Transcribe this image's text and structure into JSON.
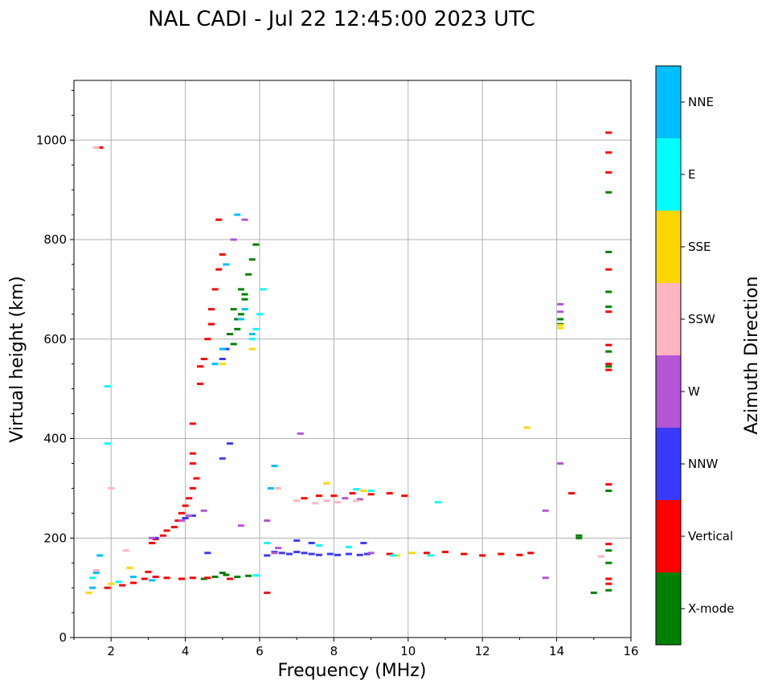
{
  "chart_data": {
    "type": "scatter",
    "title": "NAL CADI - Jul 22 12:45:00 2023 UTC",
    "xlabel": "Frequency (MHz)",
    "ylabel": "Virtual height (km)",
    "xlim": [
      1,
      16
    ],
    "ylim": [
      0,
      1120
    ],
    "xticks": [
      2,
      4,
      6,
      8,
      10,
      12,
      14,
      16
    ],
    "yticks": [
      0,
      200,
      400,
      600,
      800,
      1000
    ],
    "grid": true,
    "colorbar": {
      "label": "Azimuth Direction",
      "categories": [
        {
          "name": "X-mode",
          "color": "#008000"
        },
        {
          "name": "Vertical",
          "color": "#ff0000"
        },
        {
          "name": "NNW",
          "color": "#3a3aff"
        },
        {
          "name": "W",
          "color": "#b455d6"
        },
        {
          "name": "SSW",
          "color": "#ffb6c1"
        },
        {
          "name": "SSE",
          "color": "#ffd700"
        },
        {
          "name": "E",
          "color": "#00ffff"
        },
        {
          "name": "NNE",
          "color": "#00bfff"
        }
      ]
    },
    "series": [
      {
        "name": "X-mode",
        "points": [
          [
            4.5,
            118
          ],
          [
            4.8,
            122
          ],
          [
            5.1,
            126
          ],
          [
            5.4,
            122
          ],
          [
            5.7,
            124
          ],
          [
            5.0,
            130
          ],
          [
            5.3,
            590
          ],
          [
            5.4,
            620
          ],
          [
            5.5,
            650
          ],
          [
            5.6,
            690
          ],
          [
            5.7,
            730
          ],
          [
            5.8,
            760
          ],
          [
            5.5,
            700
          ],
          [
            5.3,
            660
          ],
          [
            5.2,
            610
          ],
          [
            5.9,
            790
          ],
          [
            5.6,
            680
          ],
          [
            5.4,
            640
          ],
          [
            14.1,
            640
          ],
          [
            14.1,
            630
          ],
          [
            14.6,
            205
          ],
          [
            14.6,
            200
          ],
          [
            15.0,
            90
          ],
          [
            15.4,
            95
          ],
          [
            15.4,
            150
          ],
          [
            15.4,
            175
          ],
          [
            15.4,
            295
          ],
          [
            15.4,
            545
          ],
          [
            15.4,
            575
          ],
          [
            15.4,
            665
          ],
          [
            15.4,
            695
          ],
          [
            15.4,
            775
          ],
          [
            15.4,
            895
          ]
        ]
      },
      {
        "name": "Vertical",
        "points": [
          [
            1.9,
            100
          ],
          [
            2.3,
            105
          ],
          [
            2.6,
            110
          ],
          [
            2.9,
            118
          ],
          [
            3.0,
            132
          ],
          [
            3.2,
            122
          ],
          [
            3.5,
            120
          ],
          [
            3.9,
            118
          ],
          [
            4.2,
            120
          ],
          [
            4.6,
            120
          ],
          [
            5.2,
            118
          ],
          [
            3.1,
            190
          ],
          [
            3.2,
            198
          ],
          [
            3.4,
            205
          ],
          [
            3.5,
            215
          ],
          [
            3.7,
            222
          ],
          [
            3.8,
            235
          ],
          [
            3.9,
            250
          ],
          [
            4.0,
            265
          ],
          [
            4.1,
            280
          ],
          [
            4.2,
            300
          ],
          [
            4.3,
            320
          ],
          [
            4.2,
            350
          ],
          [
            4.2,
            370
          ],
          [
            4.2,
            430
          ],
          [
            4.4,
            510
          ],
          [
            4.4,
            545
          ],
          [
            4.5,
            560
          ],
          [
            4.6,
            600
          ],
          [
            4.7,
            630
          ],
          [
            4.7,
            660
          ],
          [
            4.8,
            700
          ],
          [
            4.9,
            740
          ],
          [
            5.0,
            770
          ],
          [
            4.9,
            840
          ],
          [
            6.2,
            90
          ],
          [
            7.2,
            280
          ],
          [
            7.6,
            285
          ],
          [
            8.0,
            285
          ],
          [
            8.5,
            290
          ],
          [
            9.0,
            288
          ],
          [
            9.5,
            290
          ],
          [
            9.9,
            285
          ],
          [
            9.5,
            168
          ],
          [
            10.5,
            170
          ],
          [
            11.0,
            172
          ],
          [
            11.5,
            168
          ],
          [
            12.0,
            165
          ],
          [
            12.5,
            168
          ],
          [
            13.0,
            166
          ],
          [
            13.3,
            170
          ],
          [
            14.4,
            290
          ],
          [
            15.4,
            108
          ],
          [
            15.4,
            118
          ],
          [
            15.4,
            188
          ],
          [
            15.4,
            308
          ],
          [
            15.4,
            538
          ],
          [
            15.4,
            550
          ],
          [
            15.4,
            588
          ],
          [
            15.4,
            655
          ],
          [
            15.4,
            740
          ],
          [
            15.4,
            935
          ],
          [
            15.4,
            975
          ],
          [
            15.4,
            1015
          ],
          [
            1.7,
            985
          ]
        ]
      },
      {
        "name": "NNW",
        "points": [
          [
            3.2,
            200
          ],
          [
            4.0,
            240
          ],
          [
            4.2,
            245
          ],
          [
            4.6,
            170
          ],
          [
            5.0,
            360
          ],
          [
            5.2,
            390
          ],
          [
            6.2,
            165
          ],
          [
            6.4,
            172
          ],
          [
            6.6,
            170
          ],
          [
            6.8,
            168
          ],
          [
            7.0,
            172
          ],
          [
            7.2,
            170
          ],
          [
            7.4,
            168
          ],
          [
            7.6,
            166
          ],
          [
            7.9,
            168
          ],
          [
            8.1,
            166
          ],
          [
            8.4,
            168
          ],
          [
            8.7,
            166
          ],
          [
            8.9,
            168
          ],
          [
            7.0,
            195
          ],
          [
            7.4,
            190
          ],
          [
            8.8,
            190
          ],
          [
            5.1,
            580
          ],
          [
            5.0,
            560
          ]
        ]
      },
      {
        "name": "W",
        "points": [
          [
            3.1,
            200
          ],
          [
            3.9,
            235
          ],
          [
            4.1,
            245
          ],
          [
            4.5,
            255
          ],
          [
            5.5,
            225
          ],
          [
            6.2,
            235
          ],
          [
            6.4,
            170
          ],
          [
            6.5,
            180
          ],
          [
            8.3,
            280
          ],
          [
            8.7,
            278
          ],
          [
            9.0,
            170
          ],
          [
            7.1,
            410
          ],
          [
            13.7,
            120
          ],
          [
            13.7,
            255
          ],
          [
            14.1,
            350
          ],
          [
            14.1,
            670
          ],
          [
            14.1,
            655
          ],
          [
            5.3,
            800
          ],
          [
            5.6,
            840
          ]
        ]
      },
      {
        "name": "SSW",
        "points": [
          [
            1.6,
            135
          ],
          [
            2.0,
            300
          ],
          [
            6.5,
            300
          ],
          [
            7.0,
            275
          ],
          [
            7.5,
            270
          ],
          [
            7.8,
            275
          ],
          [
            8.1,
            272
          ],
          [
            8.6,
            275
          ],
          [
            2.4,
            175
          ],
          [
            15.2,
            163
          ],
          [
            1.6,
            985
          ]
        ]
      },
      {
        "name": "SSE",
        "points": [
          [
            1.4,
            90
          ],
          [
            1.5,
            100
          ],
          [
            2.0,
            108
          ],
          [
            2.5,
            140
          ],
          [
            7.8,
            310
          ],
          [
            8.8,
            295
          ],
          [
            9.7,
            165
          ],
          [
            10.1,
            170
          ],
          [
            13.2,
            422
          ],
          [
            14.1,
            622
          ],
          [
            14.1,
            628
          ],
          [
            5.8,
            580
          ],
          [
            5.0,
            550
          ]
        ]
      },
      {
        "name": "E",
        "points": [
          [
            1.5,
            120
          ],
          [
            1.9,
            505
          ],
          [
            1.9,
            390
          ],
          [
            1.7,
            165
          ],
          [
            2.2,
            112
          ],
          [
            5.9,
            125
          ],
          [
            6.1,
            700
          ],
          [
            6.0,
            650
          ],
          [
            5.9,
            620
          ],
          [
            5.8,
            600
          ],
          [
            6.2,
            190
          ],
          [
            7.6,
            185
          ],
          [
            8.4,
            182
          ],
          [
            9.6,
            165
          ],
          [
            10.8,
            272
          ],
          [
            10.6,
            165
          ],
          [
            8.6,
            298
          ],
          [
            9.0,
            295
          ]
        ]
      },
      {
        "name": "NNE",
        "points": [
          [
            1.5,
            100
          ],
          [
            1.6,
            130
          ],
          [
            1.7,
            165
          ],
          [
            2.6,
            122
          ],
          [
            3.1,
            115
          ],
          [
            6.4,
            345
          ],
          [
            5.1,
            750
          ],
          [
            5.4,
            850
          ],
          [
            5.8,
            610
          ],
          [
            5.6,
            660
          ],
          [
            5.5,
            640
          ],
          [
            6.3,
            300
          ],
          [
            4.8,
            550
          ],
          [
            5.0,
            580
          ]
        ]
      }
    ]
  }
}
